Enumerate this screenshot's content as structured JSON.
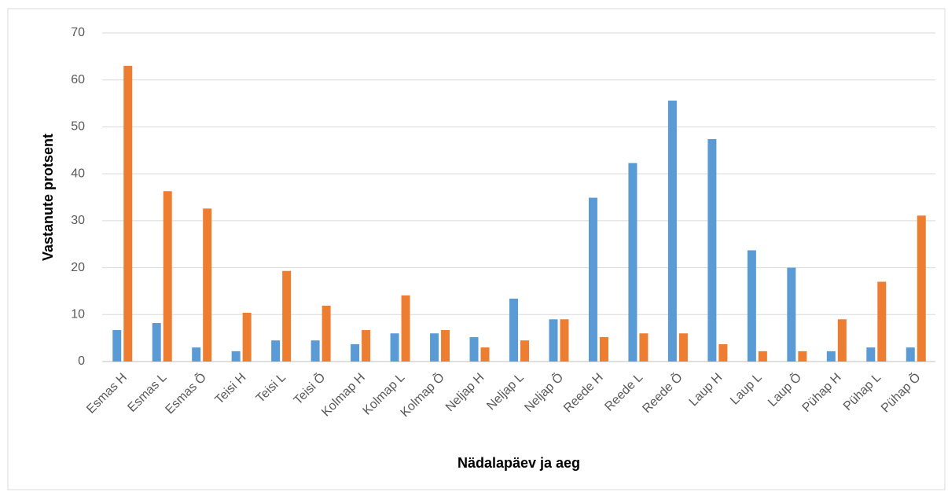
{
  "chart_data": {
    "type": "bar",
    "categories": [
      "Esmas H",
      "Esmas L",
      "Esmas Õ",
      "Teisi H",
      "Teisi L",
      "Teisi Õ",
      "Kolmap H",
      "Kolmap L",
      "Kolmap Õ",
      "Neljap H",
      "Neljap L",
      "Neljap Õ",
      "Reede H",
      "Reede L",
      "Reede Õ",
      "Laup H",
      "Laup L",
      "Laup Õ",
      "Pühap H",
      "Pühap L",
      "Pühap Õ"
    ],
    "series": [
      {
        "color": "#5b9bd5",
        "values": [
          6.7,
          8.2,
          3.0,
          2.2,
          4.5,
          4.5,
          3.7,
          6.0,
          6.0,
          5.2,
          13.4,
          9.0,
          34.9,
          42.3,
          55.6,
          47.4,
          23.7,
          20.0,
          2.2,
          3.0,
          3.0
        ]
      },
      {
        "color": "#ed7d31",
        "values": [
          63.0,
          36.3,
          32.6,
          10.4,
          19.3,
          11.9,
          6.7,
          14.1,
          6.7,
          3.0,
          4.5,
          9.0,
          5.2,
          6.0,
          6.0,
          3.7,
          2.2,
          2.2,
          9.0,
          17.0,
          31.1
        ]
      }
    ],
    "y_label": "Vastanute protsent",
    "x_label": "Nädalapäev ja aeg",
    "ylim": [
      0,
      70
    ],
    "yticks": [
      0,
      10,
      20,
      30,
      40,
      50,
      60,
      70
    ],
    "grid": true
  }
}
